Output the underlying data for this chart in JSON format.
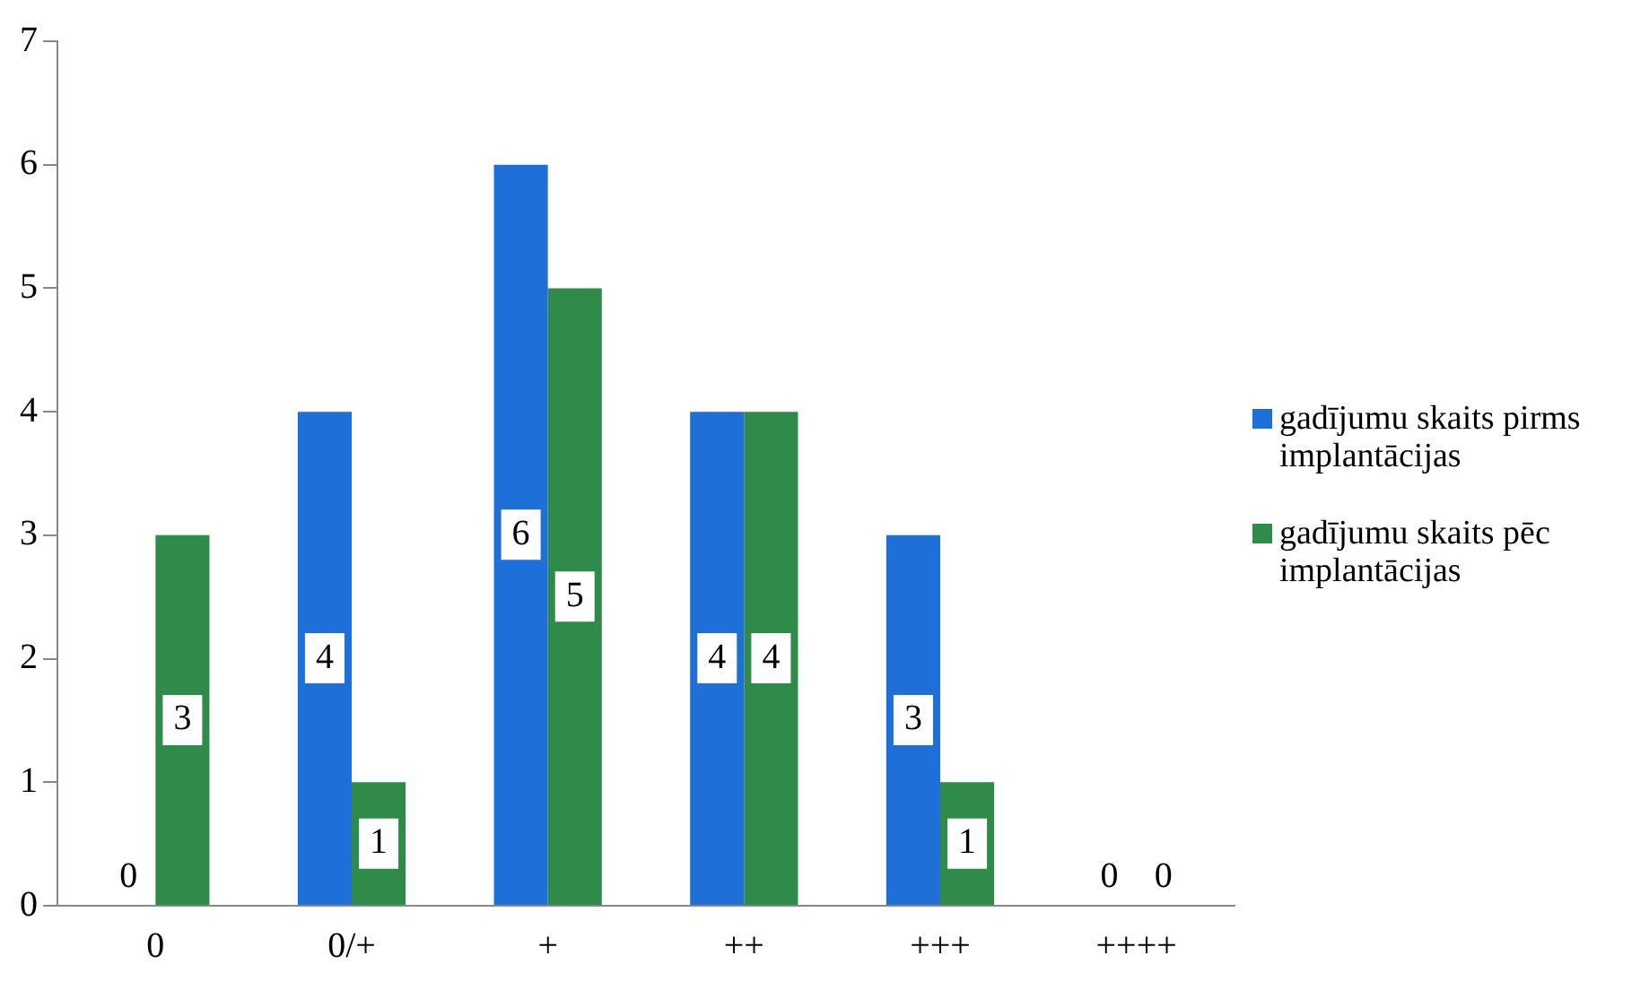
{
  "chart_data": {
    "type": "bar",
    "categories": [
      "0",
      "0/+",
      "+",
      "++",
      "+++",
      "++++"
    ],
    "series": [
      {
        "name": "gadījumu skaits pirms implantācijas",
        "color": "#1f6fd8",
        "values": [
          0,
          4,
          6,
          4,
          3,
          0
        ]
      },
      {
        "name": "gadījumu skaits pēc implantācijas",
        "color": "#2e8b4a",
        "values": [
          3,
          1,
          5,
          4,
          1,
          0
        ]
      }
    ],
    "ylim": [
      0,
      7
    ],
    "yticks": [
      0,
      1,
      2,
      3,
      4,
      5,
      6,
      7
    ],
    "grid": false,
    "legend": "right",
    "data_labels": true
  }
}
